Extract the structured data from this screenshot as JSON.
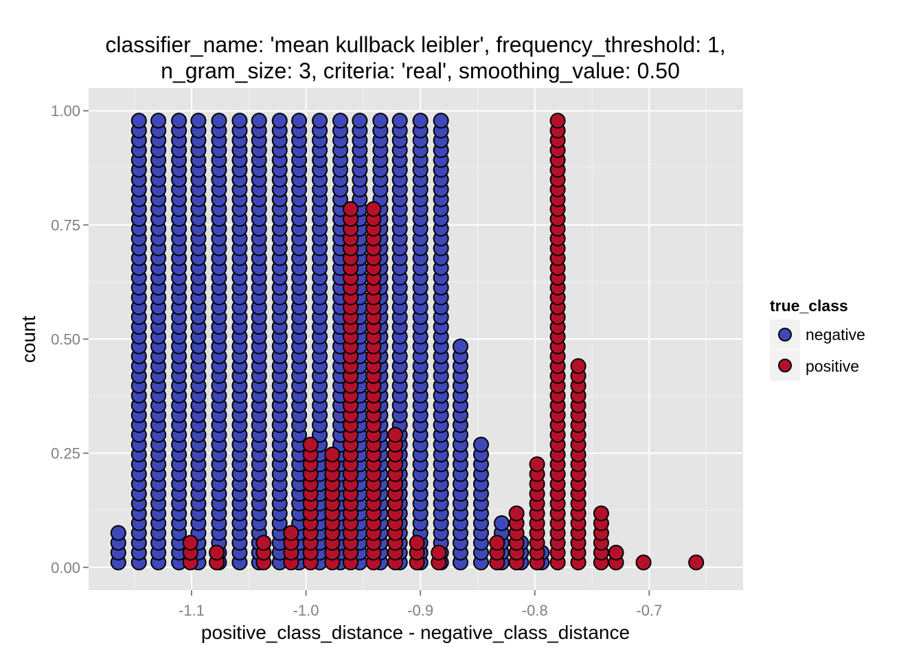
{
  "chart_data": {
    "type": "dotplot",
    "title_lines": [
      "classifier_name: 'mean kullback leibler', frequency_threshold: 1,",
      "n_gram_size: 3, criteria: 'real', smoothing_value: 0.50"
    ],
    "xlabel": "positive_class_distance - negative_class_distance",
    "ylabel": "count",
    "xlim": [
      -1.19,
      -0.618
    ],
    "ylim": [
      -0.05,
      1.05
    ],
    "x_ticks": [
      -1.1,
      -1.0,
      -0.9,
      -0.8,
      -0.7
    ],
    "x_tick_labels": [
      "-1.1",
      "-1.0",
      "-0.9",
      "-0.8",
      "-0.7"
    ],
    "y_ticks": [
      0.0,
      0.25,
      0.5,
      0.75,
      1.0
    ],
    "y_tick_labels": [
      "0.00",
      "0.25",
      "0.50",
      "0.75",
      "1.00"
    ],
    "grid": true,
    "legend_position": "right",
    "legend": {
      "title": "true_class",
      "entries": [
        {
          "label": "negative",
          "color": "#3f48b8"
        },
        {
          "label": "positive",
          "color": "#b5102a"
        }
      ]
    },
    "dot_step": 0.0215,
    "series": [
      {
        "name": "negative",
        "color": "#3f48b8",
        "stacks": [
          {
            "x": -1.164,
            "n": 4
          },
          {
            "x": -1.146,
            "n": 46
          },
          {
            "x": -1.129,
            "n": 46
          },
          {
            "x": -1.111,
            "n": 46
          },
          {
            "x": -1.094,
            "n": 46
          },
          {
            "x": -1.076,
            "n": 46
          },
          {
            "x": -1.058,
            "n": 46
          },
          {
            "x": -1.041,
            "n": 46
          },
          {
            "x": -1.023,
            "n": 46
          },
          {
            "x": -1.006,
            "n": 46
          },
          {
            "x": -0.988,
            "n": 46
          },
          {
            "x": -0.97,
            "n": 46
          },
          {
            "x": -0.953,
            "n": 46
          },
          {
            "x": -0.935,
            "n": 46
          },
          {
            "x": -0.918,
            "n": 46
          },
          {
            "x": -0.9,
            "n": 46
          },
          {
            "x": -0.882,
            "n": 46
          },
          {
            "x": -0.865,
            "n": 23
          },
          {
            "x": -0.847,
            "n": 13
          },
          {
            "x": -0.829,
            "n": 5
          },
          {
            "x": -0.812,
            "n": 3
          },
          {
            "x": -0.794,
            "n": 2
          }
        ]
      },
      {
        "name": "positive",
        "color": "#b5102a",
        "stacks": [
          {
            "x": -1.101,
            "n": 3
          },
          {
            "x": -1.078,
            "n": 2
          },
          {
            "x": -1.037,
            "n": 3
          },
          {
            "x": -1.013,
            "n": 4
          },
          {
            "x": -0.996,
            "n": 13
          },
          {
            "x": -0.977,
            "n": 12
          },
          {
            "x": -0.961,
            "n": 37
          },
          {
            "x": -0.941,
            "n": 37
          },
          {
            "x": -0.922,
            "n": 14
          },
          {
            "x": -0.903,
            "n": 3
          },
          {
            "x": -0.884,
            "n": 2
          },
          {
            "x": -0.833,
            "n": 3
          },
          {
            "x": -0.816,
            "n": 6
          },
          {
            "x": -0.798,
            "n": 11
          },
          {
            "x": -0.78,
            "n": 46
          },
          {
            "x": -0.762,
            "n": 21
          },
          {
            "x": -0.742,
            "n": 6
          },
          {
            "x": -0.729,
            "n": 2
          },
          {
            "x": -0.705,
            "n": 1
          },
          {
            "x": -0.659,
            "n": 1
          }
        ]
      }
    ]
  }
}
